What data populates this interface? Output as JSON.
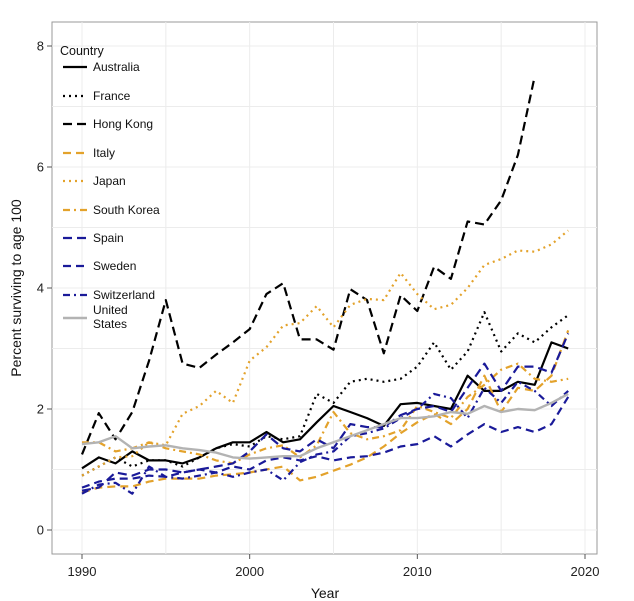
{
  "chart_data": {
    "type": "line",
    "xlabel": "Year",
    "ylabel": "Percent surviving to age 100",
    "xlim": [
      1990,
      2020
    ],
    "ylim": [
      0,
      8
    ],
    "x_ticks": [
      1990,
      2000,
      2010,
      2020
    ],
    "y_ticks": [
      0,
      2,
      4,
      6,
      8
    ],
    "grid": true,
    "legend": {
      "title": "Country",
      "placement": "top-left"
    },
    "series": [
      {
        "name": "Australia",
        "color": "#000000",
        "dash": "solid",
        "width": 2.2,
        "x": [
          1990,
          1991,
          1992,
          1993,
          1994,
          1995,
          1996,
          1997,
          1998,
          1999,
          2000,
          2001,
          2002,
          2003,
          2004,
          2005,
          2006,
          2007,
          2008,
          2009,
          2010,
          2011,
          2012,
          2013,
          2014,
          2015,
          2016,
          2017,
          2018,
          2019
        ],
        "y": [
          1.02,
          1.2,
          1.1,
          1.3,
          1.15,
          1.15,
          1.1,
          1.2,
          1.35,
          1.45,
          1.45,
          1.62,
          1.45,
          1.5,
          1.78,
          2.05,
          1.95,
          1.85,
          1.72,
          2.08,
          2.1,
          2.05,
          2.0,
          2.55,
          2.3,
          2.3,
          2.45,
          2.4,
          3.1,
          3.0
        ]
      },
      {
        "name": "France",
        "color": "#000000",
        "dash": "2,4",
        "width": 2.2,
        "x": [
          1990,
          1991,
          1992,
          1993,
          1994,
          1995,
          1996,
          1997,
          1998,
          1999,
          2000,
          2001,
          2002,
          2003,
          2004,
          2005,
          2006,
          2007,
          2008,
          2009,
          2010,
          2011,
          2012,
          2013,
          2014,
          2015,
          2016,
          2017,
          2018,
          2019
        ],
        "y": [
          0.9,
          1.05,
          1.2,
          1.05,
          1.15,
          1.15,
          1.05,
          1.2,
          1.35,
          1.42,
          1.38,
          1.55,
          1.5,
          1.55,
          2.25,
          2.1,
          2.45,
          2.5,
          2.45,
          2.5,
          2.7,
          3.1,
          2.65,
          2.95,
          3.6,
          2.95,
          3.25,
          3.1,
          3.35,
          3.55
        ]
      },
      {
        "name": "Hong Kong",
        "color": "#000000",
        "dash": "9,5",
        "width": 2.2,
        "x": [
          1990,
          1991,
          1992,
          1993,
          1994,
          1995,
          1996,
          1997,
          1998,
          1999,
          2000,
          2001,
          2002,
          2003,
          2004,
          2005,
          2006,
          2007,
          2008,
          2009,
          2010,
          2011,
          2012,
          2013,
          2014,
          2015,
          2016,
          2017
        ],
        "y": [
          1.25,
          1.93,
          1.5,
          1.95,
          2.8,
          3.8,
          2.75,
          2.68,
          2.9,
          3.1,
          3.32,
          3.9,
          4.08,
          3.15,
          3.15,
          2.98,
          3.98,
          3.8,
          2.92,
          3.88,
          3.62,
          4.35,
          4.15,
          5.1,
          5.05,
          5.45,
          6.2,
          7.5
        ]
      },
      {
        "name": "Italy",
        "color": "#E3A22B",
        "dash": "8,5",
        "width": 2.2,
        "x": [
          1990,
          1991,
          1992,
          1993,
          1994,
          1995,
          1996,
          1997,
          1998,
          1999,
          2000,
          2001,
          2002,
          2003,
          2004,
          2005,
          2006,
          2007,
          2008,
          2009,
          2010,
          2011,
          2012,
          2013,
          2014,
          2015,
          2016,
          2017,
          2018,
          2019
        ],
        "y": [
          0.62,
          0.7,
          0.72,
          0.72,
          0.8,
          0.85,
          0.85,
          0.85,
          0.9,
          0.92,
          0.95,
          1.0,
          1.05,
          0.82,
          0.88,
          0.98,
          1.08,
          1.2,
          1.38,
          1.6,
          1.78,
          1.92,
          1.75,
          2.0,
          2.55,
          1.95,
          2.35,
          2.3,
          2.55,
          3.3
        ]
      },
      {
        "name": "Japan",
        "color": "#E3A22B",
        "dash": "2,4",
        "width": 2.2,
        "x": [
          1990,
          1991,
          1992,
          1993,
          1994,
          1995,
          1996,
          1997,
          1998,
          1999,
          2000,
          2001,
          2002,
          2003,
          2004,
          2005,
          2006,
          2007,
          2008,
          2009,
          2010,
          2011,
          2012,
          2013,
          2014,
          2015,
          2016,
          2017,
          2018,
          2019
        ],
        "y": [
          0.9,
          1.05,
          1.2,
          1.22,
          1.45,
          1.4,
          1.92,
          2.05,
          2.3,
          2.1,
          2.8,
          3.02,
          3.38,
          3.42,
          3.7,
          3.35,
          3.72,
          3.82,
          3.8,
          4.25,
          3.9,
          3.65,
          3.72,
          4.0,
          4.38,
          4.48,
          4.62,
          4.6,
          4.72,
          4.95
        ]
      },
      {
        "name": "South Korea",
        "color": "#E3A22B",
        "dash": "7,4,2,4",
        "width": 2.2,
        "x": [
          1990,
          1991,
          1992,
          1993,
          1994,
          1995,
          1996,
          1997,
          1998,
          1999,
          2000,
          2001,
          2002,
          2003,
          2004,
          2005,
          2006,
          2007,
          2008,
          2009,
          2010,
          2011,
          2012,
          2013,
          2014,
          2015,
          2016,
          2017,
          2018,
          2019
        ],
        "y": [
          1.45,
          1.45,
          1.3,
          1.35,
          1.45,
          1.35,
          1.3,
          1.25,
          1.15,
          1.1,
          1.25,
          1.35,
          1.4,
          1.2,
          1.4,
          1.95,
          1.6,
          1.5,
          1.55,
          1.65,
          2.05,
          1.95,
          1.85,
          2.2,
          2.4,
          2.65,
          2.75,
          2.5,
          2.45,
          2.5
        ]
      },
      {
        "name": "Spain",
        "color": "#1A1A99",
        "dash": "9,5",
        "width": 2.2,
        "x": [
          1990,
          1991,
          1992,
          1993,
          1994,
          1995,
          1996,
          1997,
          1998,
          1999,
          2000,
          2001,
          2002,
          2003,
          2004,
          2005,
          2006,
          2007,
          2008,
          2009,
          2010,
          2011,
          2012,
          2013,
          2014,
          2015,
          2016,
          2017,
          2018,
          2019
        ],
        "y": [
          0.65,
          0.7,
          0.95,
          0.9,
          1.0,
          1.0,
          0.95,
          1.0,
          1.05,
          1.1,
          1.3,
          1.58,
          1.35,
          1.3,
          1.5,
          1.35,
          1.75,
          1.7,
          1.7,
          1.9,
          2.0,
          2.05,
          1.95,
          2.35,
          2.75,
          2.3,
          2.7,
          2.7,
          2.6,
          3.25
        ]
      },
      {
        "name": "Sweden",
        "color": "#1A1A99",
        "dash": "8,5",
        "width": 2.2,
        "x": [
          1990,
          1991,
          1992,
          1993,
          1994,
          1995,
          1996,
          1997,
          1998,
          1999,
          2000,
          2001,
          2002,
          2003,
          2004,
          2005,
          2006,
          2007,
          2008,
          2009,
          2010,
          2011,
          2012,
          2013,
          2014,
          2015,
          2016,
          2017,
          2018,
          2019
        ],
        "y": [
          0.7,
          0.8,
          0.85,
          0.85,
          0.9,
          0.88,
          0.95,
          1.0,
          0.95,
          1.05,
          1.0,
          1.15,
          1.2,
          1.15,
          1.22,
          1.15,
          1.2,
          1.22,
          1.28,
          1.38,
          1.42,
          1.55,
          1.38,
          1.58,
          1.75,
          1.62,
          1.7,
          1.62,
          1.75,
          2.2
        ]
      },
      {
        "name": "Switzerland",
        "color": "#1A1A99",
        "dash": "7,4,2,4",
        "width": 2.2,
        "x": [
          1990,
          1991,
          1992,
          1993,
          1994,
          1995,
          1996,
          1997,
          1998,
          1999,
          2000,
          2001,
          2002,
          2003,
          2004,
          2005,
          2006,
          2007,
          2008,
          2009,
          2010,
          2011,
          2012,
          2013,
          2014,
          2015,
          2016,
          2017,
          2018,
          2019
        ],
        "y": [
          0.6,
          0.75,
          0.78,
          0.6,
          1.05,
          0.88,
          0.85,
          0.9,
          0.95,
          0.88,
          0.95,
          1.0,
          0.82,
          1.12,
          1.25,
          1.3,
          1.55,
          1.6,
          1.68,
          1.85,
          2.0,
          2.25,
          2.18,
          1.85,
          2.35,
          2.1,
          2.45,
          2.3,
          2.05,
          2.3
        ]
      },
      {
        "name": "United States",
        "label_lines": [
          "United",
          "States"
        ],
        "color": "#B3B3B3",
        "dash": "solid",
        "width": 2.4,
        "x": [
          1990,
          1991,
          1992,
          1993,
          1994,
          1995,
          1996,
          1997,
          1998,
          1999,
          2000,
          2001,
          2002,
          2003,
          2004,
          2005,
          2006,
          2007,
          2008,
          2009,
          2010,
          2011,
          2012,
          2013,
          2014,
          2015,
          2016,
          2017,
          2018,
          2019
        ],
        "y": [
          1.42,
          1.45,
          1.55,
          1.35,
          1.38,
          1.4,
          1.35,
          1.32,
          1.28,
          1.2,
          1.18,
          1.2,
          1.22,
          1.22,
          1.35,
          1.45,
          1.55,
          1.65,
          1.75,
          1.85,
          1.85,
          1.88,
          1.95,
          1.92,
          2.05,
          1.95,
          2.0,
          1.98,
          2.1,
          2.25
        ]
      }
    ]
  }
}
